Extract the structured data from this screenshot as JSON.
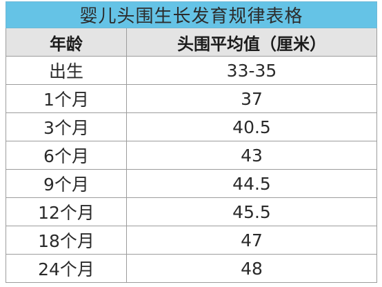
{
  "table": {
    "title": "婴儿头围生长发育规律表格",
    "columns": [
      "年龄",
      "头围平均值（厘米）"
    ],
    "rows": [
      {
        "age": "出生",
        "value": "33-35"
      },
      {
        "age": "1个月",
        "value": "37"
      },
      {
        "age": "3个月",
        "value": "40.5"
      },
      {
        "age": "6个月",
        "value": "43"
      },
      {
        "age": "9个月",
        "value": "44.5"
      },
      {
        "age": "12个月",
        "value": "45.5"
      },
      {
        "age": "18个月",
        "value": "47"
      },
      {
        "age": "24个月",
        "value": "48"
      }
    ],
    "colors": {
      "title_bg": "#65c3e6",
      "header_bg": "#e4e4e4",
      "border": "#9c9c9c"
    }
  }
}
